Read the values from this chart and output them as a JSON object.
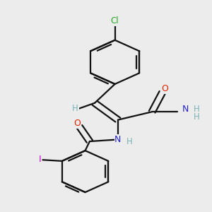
{
  "bg": "#ececec",
  "bond_color": "#111111",
  "lw": 1.6,
  "colors": {
    "H": "#7ab3b3",
    "O": "#dd2200",
    "N": "#2222cc",
    "Cl": "#22aa22",
    "I": "#cc00cc"
  },
  "figsize": [
    3.0,
    3.0
  ],
  "dpi": 100
}
